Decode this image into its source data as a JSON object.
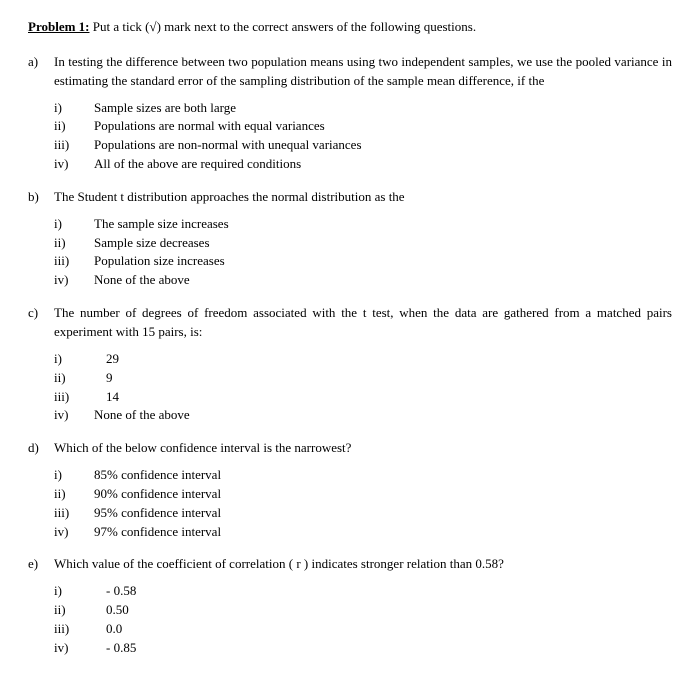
{
  "title_label": "Problem 1:",
  "title_rest": " Put a tick (√) mark next to the correct answers of the following questions.",
  "questions": [
    {
      "letter": "a)",
      "stem": "In testing the difference between two population means using two independent samples, we use the pooled variance in estimating the standard error of the sampling distribution of the sample mean difference, if the",
      "options": [
        {
          "num": "i)",
          "text": "Sample sizes are both large"
        },
        {
          "num": "ii)",
          "text": "Populations are normal with equal variances"
        },
        {
          "num": "iii)",
          "text": "Populations are non-normal with unequal variances"
        },
        {
          "num": "iv)",
          "text": "All of the above are required conditions"
        }
      ]
    },
    {
      "letter": "b)",
      "stem": "The Student t distribution approaches the normal distribution as the",
      "options": [
        {
          "num": "i)",
          "text": "The sample size increases"
        },
        {
          "num": "ii)",
          "text": "Sample size decreases"
        },
        {
          "num": "iii)",
          "text": "Population size increases"
        },
        {
          "num": "iv)",
          "text": "None of the above"
        }
      ]
    },
    {
      "letter": "c)",
      "stem": "The number of degrees of freedom associated with the t test, when the data are gathered from a matched pairs experiment with 15 pairs, is:",
      "options": [
        {
          "num": "i)",
          "text": "29",
          "narrow": true
        },
        {
          "num": "ii)",
          "text": "9",
          "narrow": true
        },
        {
          "num": "iii)",
          "text": "14",
          "narrow": true
        },
        {
          "num": "iv)",
          "text": "None of the above"
        }
      ]
    },
    {
      "letter": "d)",
      "stem": "Which of the below confidence interval is the narrowest?",
      "options": [
        {
          "num": "i)",
          "text": "85% confidence interval"
        },
        {
          "num": "ii)",
          "text": "90% confidence interval"
        },
        {
          "num": "iii)",
          "text": "95% confidence interval"
        },
        {
          "num": "iv)",
          "text": "97% confidence interval"
        }
      ]
    },
    {
      "letter": "e)",
      "stem": "Which value of the coefficient of correlation ( r ) indicates stronger relation than 0.58?",
      "options": [
        {
          "num": "i)",
          "text": "- 0.58",
          "narrow": true
        },
        {
          "num": "ii)",
          "text": "0.50",
          "narrow": true
        },
        {
          "num": "iii)",
          "text": "0.0",
          "narrow": true
        },
        {
          "num": "iv)",
          "text": "- 0.85",
          "narrow": true
        }
      ]
    }
  ]
}
